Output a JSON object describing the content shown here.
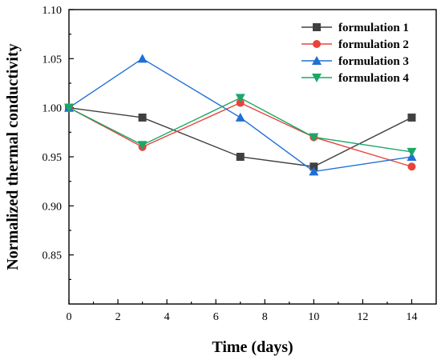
{
  "chart_data": {
    "type": "line",
    "title": "",
    "xlabel": "Time (days)",
    "ylabel": "Normalized thermal conductivity",
    "xlim": [
      0,
      15
    ],
    "ylim": [
      0.8,
      1.1
    ],
    "xticks": [
      0,
      2,
      4,
      6,
      8,
      10,
      12,
      14
    ],
    "yticks": [
      0.85,
      0.9,
      0.95,
      1.0,
      1.05,
      1.1
    ],
    "x_tick_labels": [
      "0",
      "2",
      "4",
      "6",
      "8",
      "10",
      "12",
      "14"
    ],
    "y_tick_labels": [
      "0.85",
      "0.90",
      "0.95",
      "1.00",
      "1.05",
      "1.10"
    ],
    "legend_position": "top-right",
    "grid": false,
    "x": [
      0,
      3,
      7,
      10,
      14
    ],
    "series": [
      {
        "name": "formulation 1",
        "color": "#404040",
        "marker": "square",
        "values": [
          1.0,
          0.99,
          0.95,
          0.94,
          0.99
        ]
      },
      {
        "name": "formulation 2",
        "color": "#e8433a",
        "marker": "circle",
        "values": [
          1.0,
          0.96,
          1.005,
          0.97,
          0.94
        ]
      },
      {
        "name": "formulation 3",
        "color": "#1f6fd6",
        "marker": "triangle-up",
        "values": [
          1.0,
          1.05,
          0.99,
          0.935,
          0.95
        ]
      },
      {
        "name": "formulation 4",
        "color": "#1aa868",
        "marker": "triangle-down",
        "values": [
          1.0,
          0.962,
          1.01,
          0.97,
          0.955
        ]
      }
    ]
  }
}
